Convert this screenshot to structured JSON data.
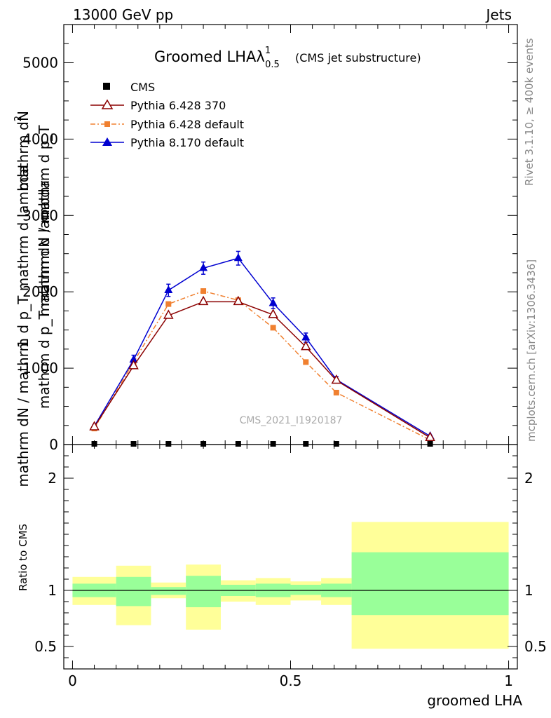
{
  "header": {
    "left": "13000 GeV pp",
    "right": "Jets"
  },
  "side_labels": {
    "rivet": "Rivet 3.1.10, ≥ 400k events",
    "mcplots": "mcplots.cern.ch [arXiv:1306.3436]"
  },
  "colors": {
    "cms": "#000000",
    "py6_370": "#8b0000",
    "py6_default": "#f08030",
    "py8_default": "#0000d0",
    "band_yellow": "#ffff99",
    "band_green": "#99ff99"
  },
  "chart_data": [
    {
      "type": "line",
      "panel": "main",
      "title": "Groomed LHAλ",
      "title_sup": "1",
      "title_sub": "0.5",
      "subtitle": "(CMS jet substructure)",
      "watermark": "CMS_2021_I1920187",
      "ylabel_numerator_1": "mathrm d",
      "ylabel_numerator_2": "N",
      "ylabel_numerator_sup": "2",
      "ylabel_denominator": "mathrm d p_T mathrm d lambda",
      "ylabel_prefix": "1",
      "ylabel_full": "mathrm dN / mathrm d p_T mathrm d lambda",
      "ylabel_prefix_den": "mathrm dN / mathrm d p_T",
      "xlim": [
        -0.02,
        1.02
      ],
      "ylim": [
        0,
        5500
      ],
      "yticks": [
        0,
        1000,
        2000,
        3000,
        4000,
        5000
      ],
      "ytick_labels": [
        "0",
        "1000",
        "2000",
        "3000",
        "4000",
        "5000"
      ],
      "x": [
        0.05,
        0.14,
        0.22,
        0.3,
        0.38,
        0.46,
        0.535,
        0.605,
        0.82
      ],
      "bin_edges": [
        0,
        0.1,
        0.18,
        0.26,
        0.34,
        0.42,
        0.5,
        0.57,
        0.64,
        1.0
      ],
      "legend": {
        "location": "top-left",
        "entries": [
          {
            "key": "cms",
            "label": "CMS"
          },
          {
            "key": "py6_370",
            "label": "Pythia 6.428 370"
          },
          {
            "key": "py6_default",
            "label": "Pythia 6.428 default"
          },
          {
            "key": "py8_default",
            "label": "Pythia 8.170 default"
          }
        ]
      },
      "series": [
        {
          "key": "cms",
          "name": "CMS",
          "marker": "square",
          "values": [
            0,
            0,
            0,
            0,
            0,
            0,
            0,
            0,
            0
          ]
        },
        {
          "key": "py6_370",
          "name": "Pythia 6.428 370",
          "marker": "open-triangle",
          "line": "solid",
          "values": [
            230,
            1030,
            1690,
            1870,
            1870,
            1700,
            1280,
            840,
            90
          ]
        },
        {
          "key": "py6_default",
          "name": "Pythia 6.428 default",
          "marker": "filled-square",
          "line": "dashdot",
          "values": [
            210,
            1080,
            1840,
            2010,
            1890,
            1530,
            1080,
            680,
            60
          ]
        },
        {
          "key": "py8_default",
          "name": "Pythia 8.170 default",
          "marker": "filled-triangle",
          "line": "solid",
          "values": [
            240,
            1110,
            2020,
            2310,
            2440,
            1850,
            1400,
            850,
            110
          ],
          "errors": [
            20,
            60,
            80,
            80,
            90,
            70,
            60,
            40,
            10
          ]
        }
      ]
    },
    {
      "type": "area",
      "panel": "ratio",
      "ylabel": "Ratio to CMS",
      "xlabel": "groomed LHA",
      "xlim": [
        -0.02,
        1.02
      ],
      "ylim": [
        0.3,
        2.3
      ],
      "yticks": [
        0.5,
        1,
        2
      ],
      "ytick_labels": [
        "0.5",
        "1",
        "2"
      ],
      "xticks": [
        0,
        0.5,
        1
      ],
      "xtick_labels": [
        "0",
        "0.5",
        "1"
      ],
      "reference": 1.0,
      "bands": [
        {
          "x0": 0.0,
          "x1": 0.1,
          "yellow": [
            0.87,
            1.12
          ],
          "green": [
            0.94,
            1.06
          ]
        },
        {
          "x0": 0.1,
          "x1": 0.18,
          "yellow": [
            0.69,
            1.22
          ],
          "green": [
            0.86,
            1.12
          ]
        },
        {
          "x0": 0.18,
          "x1": 0.26,
          "yellow": [
            0.93,
            1.07
          ],
          "green": [
            0.96,
            1.03
          ]
        },
        {
          "x0": 0.26,
          "x1": 0.34,
          "yellow": [
            0.65,
            1.23
          ],
          "green": [
            0.85,
            1.13
          ]
        },
        {
          "x0": 0.34,
          "x1": 0.42,
          "yellow": [
            0.9,
            1.09
          ],
          "green": [
            0.95,
            1.05
          ]
        },
        {
          "x0": 0.42,
          "x1": 0.5,
          "yellow": [
            0.87,
            1.11
          ],
          "green": [
            0.94,
            1.06
          ]
        },
        {
          "x0": 0.5,
          "x1": 0.57,
          "yellow": [
            0.91,
            1.08
          ],
          "green": [
            0.96,
            1.05
          ]
        },
        {
          "x0": 0.57,
          "x1": 0.64,
          "yellow": [
            0.87,
            1.11
          ],
          "green": [
            0.94,
            1.06
          ]
        },
        {
          "x0": 0.64,
          "x1": 1.0,
          "yellow": [
            0.48,
            1.61
          ],
          "green": [
            0.78,
            1.34
          ]
        }
      ]
    }
  ]
}
